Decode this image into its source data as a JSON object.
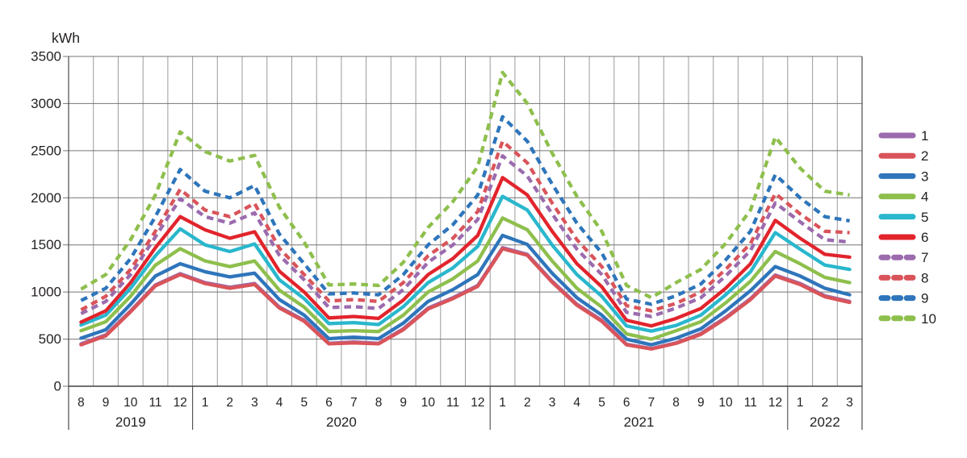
{
  "chart_data": {
    "type": "line",
    "unit": "kWh",
    "grid": true,
    "legend_position": "right",
    "y_axis": {
      "min": 0,
      "max": 3500,
      "step": 500
    },
    "x_axis": {
      "month_labels": [
        "8",
        "9",
        "10",
        "11",
        "12",
        "1",
        "2",
        "3",
        "4",
        "5",
        "6",
        "7",
        "8",
        "9",
        "10",
        "11",
        "12",
        "1",
        "2",
        "3",
        "4",
        "5",
        "6",
        "7",
        "8",
        "9",
        "10",
        "11",
        "12",
        "1",
        "2",
        "3"
      ],
      "year_groups": [
        {
          "label": "2019",
          "months": 5
        },
        {
          "label": "2020",
          "months": 12
        },
        {
          "label": "2021",
          "months": 12
        },
        {
          "label": "2022",
          "months": 3
        }
      ]
    },
    "series": [
      {
        "name": "1",
        "color": "#9B6BAE",
        "style": "solid",
        "values": [
          450,
          545,
          800,
          1075,
          1195,
          1100,
          1050,
          1090,
          840,
          700,
          455,
          470,
          455,
          610,
          830,
          940,
          1070,
          1470,
          1400,
          1115,
          870,
          700,
          445,
          400,
          460,
          560,
          730,
          930,
          1180,
          1090,
          960,
          900
        ]
      },
      {
        "name": "2",
        "color": "#D9545A",
        "style": "solid",
        "values": [
          440,
          535,
          790,
          1065,
          1185,
          1090,
          1040,
          1080,
          830,
          690,
          450,
          460,
          450,
          600,
          820,
          930,
          1060,
          1460,
          1390,
          1105,
          860,
          690,
          440,
          395,
          455,
          550,
          720,
          920,
          1170,
          1080,
          950,
          890
        ]
      },
      {
        "name": "3",
        "color": "#2E75BB",
        "style": "solid",
        "values": [
          510,
          600,
          870,
          1170,
          1300,
          1215,
          1160,
          1200,
          920,
          755,
          505,
          520,
          505,
          670,
          900,
          1025,
          1185,
          1600,
          1505,
          1200,
          940,
          755,
          500,
          440,
          510,
          610,
          800,
          1015,
          1270,
          1170,
          1040,
          970
        ]
      },
      {
        "name": "4",
        "color": "#8EBF4D",
        "style": "solid",
        "values": [
          590,
          685,
          955,
          1285,
          1460,
          1330,
          1270,
          1330,
          1020,
          840,
          580,
          590,
          580,
          755,
          1000,
          1140,
          1330,
          1785,
          1660,
          1330,
          1040,
          840,
          555,
          500,
          590,
          685,
          885,
          1115,
          1430,
          1300,
          1155,
          1100
        ]
      },
      {
        "name": "5",
        "color": "#29B7CD",
        "style": "solid",
        "values": [
          650,
          755,
          1040,
          1385,
          1670,
          1500,
          1430,
          1510,
          1130,
          930,
          665,
          675,
          655,
          845,
          1100,
          1255,
          1485,
          2015,
          1870,
          1500,
          1185,
          955,
          640,
          585,
          645,
          755,
          970,
          1215,
          1630,
          1455,
          1285,
          1240
        ]
      },
      {
        "name": "6",
        "color": "#E2242C",
        "style": "solid",
        "values": [
          680,
          800,
          1100,
          1470,
          1800,
          1660,
          1570,
          1640,
          1220,
          1000,
          725,
          740,
          720,
          915,
          1185,
          1355,
          1600,
          2215,
          2030,
          1645,
          1300,
          1055,
          700,
          640,
          720,
          825,
          1040,
          1300,
          1760,
          1570,
          1400,
          1370
        ]
      },
      {
        "name": "7",
        "color": "#9B6BAE",
        "style": "dashed",
        "values": [
          770,
          900,
          1185,
          1585,
          1990,
          1800,
          1730,
          1840,
          1390,
          1130,
          835,
          845,
          825,
          1025,
          1315,
          1500,
          1770,
          2445,
          2230,
          1830,
          1455,
          1185,
          785,
          740,
          830,
          940,
          1170,
          1440,
          1945,
          1745,
          1555,
          1530
        ]
      },
      {
        "name": "8",
        "color": "#D9545A",
        "style": "dashed",
        "values": [
          810,
          955,
          1240,
          1645,
          2090,
          1870,
          1800,
          1940,
          1465,
          1185,
          905,
          920,
          900,
          1100,
          1385,
          1570,
          1855,
          2600,
          2370,
          1945,
          1555,
          1270,
          855,
          800,
          880,
          1000,
          1240,
          1515,
          2045,
          1830,
          1645,
          1630
        ]
      },
      {
        "name": "9",
        "color": "#2E75BB",
        "style": "dashed",
        "values": [
          910,
          1040,
          1355,
          1800,
          2300,
          2070,
          2000,
          2130,
          1615,
          1300,
          980,
          990,
          970,
          1185,
          1500,
          1715,
          2030,
          2860,
          2600,
          2145,
          1730,
          1415,
          925,
          870,
          960,
          1085,
          1340,
          1645,
          2245,
          2000,
          1800,
          1755
        ]
      },
      {
        "name": "10",
        "color": "#8EBF4D",
        "style": "dashed",
        "values": [
          1030,
          1185,
          1555,
          2030,
          2700,
          2490,
          2390,
          2450,
          1900,
          1530,
          1075,
          1085,
          1070,
          1315,
          1685,
          1960,
          2330,
          3330,
          3000,
          2475,
          2015,
          1645,
          1070,
          940,
          1100,
          1240,
          1515,
          1870,
          2645,
          2315,
          2070,
          2030
        ]
      }
    ]
  }
}
